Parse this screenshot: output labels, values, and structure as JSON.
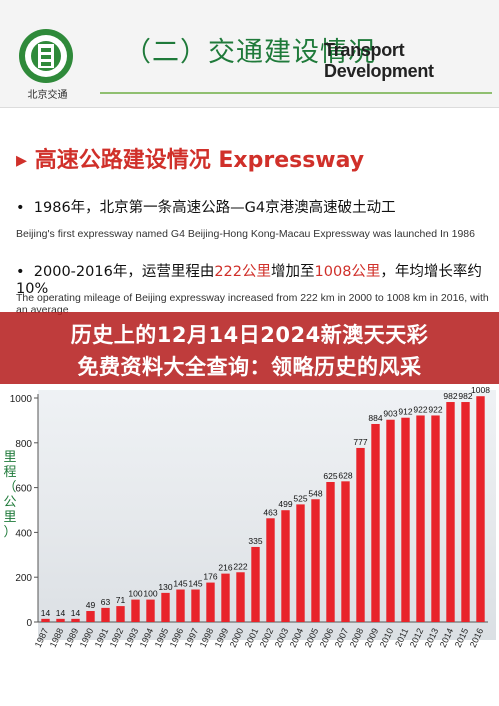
{
  "header": {
    "logo_text": "北京交通",
    "title_zh": "（二）交通建设情况",
    "title_en": "Transport Development"
  },
  "section": {
    "title": "高速公路建设情况 Expressway",
    "bullets": [
      {
        "zh_parts": [
          "1986年，北京第一条高速公路—G4京港澳高速破土动工"
        ],
        "en": "Beijing's first expressway named G4 Beijing-Hong Kong-Macau Expressway was launched In 1986"
      },
      {
        "zh_parts": [
          "2000-2016年，运营里程由",
          "222公里",
          "增加至",
          "1008公里",
          "，年均增长率约10%"
        ],
        "en": "The operating mileage of Beijing expressway increased from 222 km in 2000 to 1008 km in 2016, with an average"
      }
    ]
  },
  "banner": {
    "line1": "历史上的12月14日2024新澳天天彩",
    "line2": "免费资料大全查询：领略历史的风采"
  },
  "chart_data": {
    "type": "bar",
    "ylabel": "里程（公里）",
    "ylim": [
      0,
      1000
    ],
    "yticks": [
      0,
      200,
      400,
      600,
      800,
      1000
    ],
    "grid": false,
    "bar_color": "#e8242b",
    "categories": [
      "1987",
      "1988",
      "1989",
      "1990",
      "1991",
      "1992",
      "1993",
      "1994",
      "1995",
      "1996",
      "1997",
      "1998",
      "1999",
      "2000",
      "2001",
      "2002",
      "2003",
      "2004",
      "2005",
      "2006",
      "2007",
      "2008",
      "2009",
      "2010",
      "2011",
      "2012",
      "2013",
      "2014",
      "2015",
      "2016"
    ],
    "values": [
      14,
      14,
      14,
      49,
      63,
      71,
      100,
      100,
      130,
      145,
      145,
      176,
      216,
      222,
      335,
      463,
      499,
      525,
      548,
      625,
      628,
      777,
      884,
      903,
      912,
      922,
      922,
      982,
      982,
      1008
    ],
    "value_labels": [
      "14",
      "14",
      "14",
      "49",
      "63",
      "71",
      "100",
      "100",
      "130",
      "145",
      "145",
      "176",
      "216",
      "222",
      "335",
      "463",
      "499",
      "525",
      "548",
      "625",
      "628",
      "777",
      "884",
      "903",
      "912",
      "922",
      "922",
      "982",
      "982",
      "1008"
    ]
  }
}
